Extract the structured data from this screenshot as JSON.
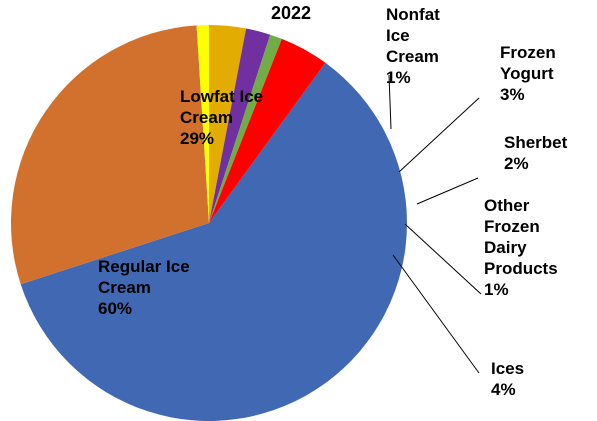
{
  "chart_data": {
    "type": "pie",
    "title": "2022",
    "slices": [
      {
        "label": "Regular Ice Cream",
        "value": 60,
        "value_label": "60%",
        "color": "#4169b3"
      },
      {
        "label": "Lowfat Ice Cream",
        "value": 29,
        "value_label": "29%",
        "color": "#d2712e"
      },
      {
        "label": "Nonfat Ice Cream",
        "value": 1,
        "value_label": "1%",
        "color": "#ffff00"
      },
      {
        "label": "Frozen Yogurt",
        "value": 3,
        "value_label": "3%",
        "color": "#e2ac00"
      },
      {
        "label": "Sherbet",
        "value": 2,
        "value_label": "2%",
        "color": "#7030a0"
      },
      {
        "label": "Other Frozen Dairy Products",
        "value": 1,
        "value_label": "1%",
        "color": "#70ad47"
      },
      {
        "label": "Ices",
        "value": 4,
        "value_label": "4%",
        "color": "#ff0000"
      }
    ],
    "legend": "none",
    "data_labels": "category name and percentage"
  }
}
